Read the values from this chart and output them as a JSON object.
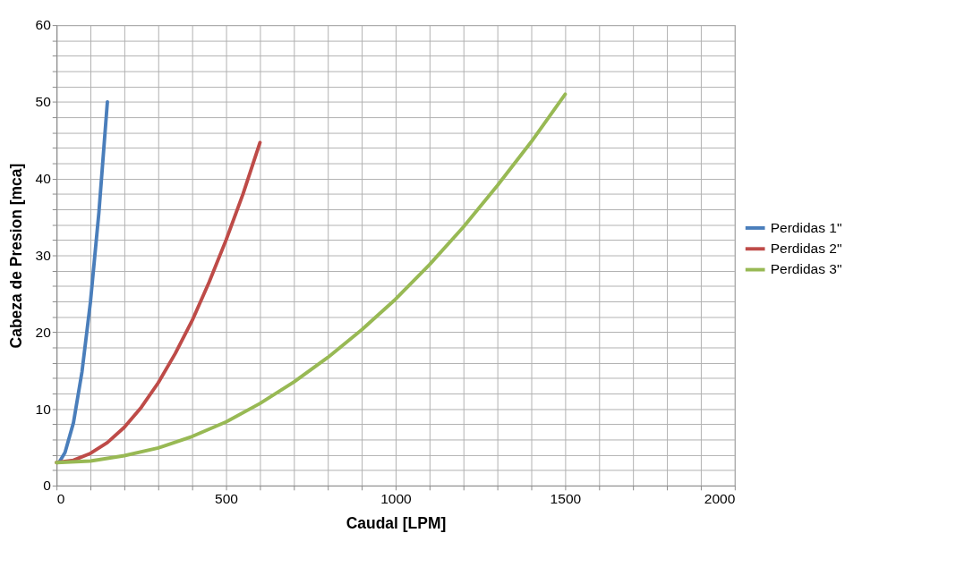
{
  "chart_data": {
    "type": "line",
    "xlabel": "Caudal [LPM]",
    "ylabel": "Cabeza de Presion [mca]",
    "xlim": [
      0,
      2000
    ],
    "ylim": [
      0,
      60
    ],
    "xticks": [
      0,
      {
        "value": 100,
        "label": null
      },
      {
        "value": 200,
        "label": null
      },
      {
        "value": 300,
        "label": null
      },
      {
        "value": 400,
        "label": null
      },
      500,
      {
        "value": 600,
        "label": null
      },
      {
        "value": 700,
        "label": null
      },
      {
        "value": 800,
        "label": null
      },
      {
        "value": 900,
        "label": null
      },
      1000,
      {
        "value": 1100,
        "label": null
      },
      {
        "value": 1200,
        "label": null
      },
      {
        "value": 1300,
        "label": null
      },
      {
        "value": 1400,
        "label": null
      },
      1500,
      {
        "value": 1600,
        "label": null
      },
      {
        "value": 1700,
        "label": null
      },
      {
        "value": 1800,
        "label": null
      },
      {
        "value": 1900,
        "label": null
      },
      2000
    ],
    "yticks": [
      0,
      {
        "value": 2,
        "label": null
      },
      {
        "value": 4,
        "label": null
      },
      {
        "value": 6,
        "label": null
      },
      {
        "value": 8,
        "label": null
      },
      10,
      {
        "value": 12,
        "label": null
      },
      {
        "value": 14,
        "label": null
      },
      {
        "value": 16,
        "label": null
      },
      {
        "value": 18,
        "label": null
      },
      20,
      {
        "value": 22,
        "label": null
      },
      {
        "value": 24,
        "label": null
      },
      {
        "value": 26,
        "label": null
      },
      {
        "value": 28,
        "label": null
      },
      30,
      {
        "value": 32,
        "label": null
      },
      {
        "value": 34,
        "label": null
      },
      {
        "value": 36,
        "label": null
      },
      {
        "value": 38,
        "label": null
      },
      40,
      {
        "value": 42,
        "label": null
      },
      {
        "value": 44,
        "label": null
      },
      {
        "value": 46,
        "label": null
      },
      {
        "value": 48,
        "label": null
      },
      50,
      {
        "value": 52,
        "label": null
      },
      {
        "value": 54,
        "label": null
      },
      {
        "value": 56,
        "label": null
      },
      {
        "value": 58,
        "label": null
      },
      60
    ],
    "grid": true,
    "legend": "right",
    "marker": "none",
    "line_style": "solid",
    "series": [
      {
        "name": "Perdidas 1\"",
        "color": "#4a7ebb",
        "x": [
          10,
          25,
          50,
          75,
          100,
          125,
          150
        ],
        "values": [
          3.2,
          4.3,
          8.2,
          14.8,
          23.9,
          35.6,
          50
        ]
      },
      {
        "name": "Perdidas 2\"",
        "color": "#be4b48",
        "x": [
          0,
          50,
          100,
          150,
          200,
          250,
          300,
          350,
          400,
          450,
          500,
          550,
          600
        ],
        "values": [
          3,
          3.3,
          4.2,
          5.6,
          7.6,
          10.2,
          13.4,
          17.2,
          21.5,
          26.5,
          32,
          38,
          44.7
        ]
      },
      {
        "name": "Perdidas 3\"",
        "color": "#98b954",
        "x": [
          0,
          100,
          200,
          300,
          400,
          500,
          600,
          700,
          800,
          900,
          1000,
          1100,
          1200,
          1300,
          1400,
          1500
        ],
        "values": [
          3,
          3.2,
          3.9,
          4.9,
          6.4,
          8.3,
          10.7,
          13.5,
          16.7,
          20.3,
          24.3,
          28.8,
          33.7,
          39.1,
          44.8,
          51
        ]
      }
    ]
  }
}
